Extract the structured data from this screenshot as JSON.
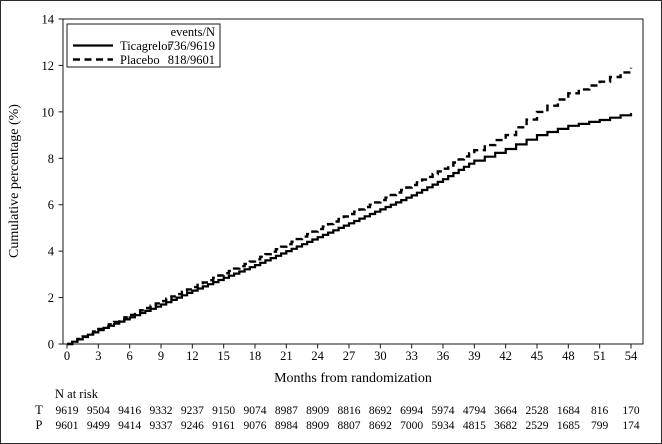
{
  "figure": {
    "background": "#ffffff",
    "border_color": "#2b2b2b",
    "line_color": "#000000"
  },
  "chart_data": {
    "type": "line",
    "subtype": "kaplan-meier-cumulative-incidence",
    "title": "",
    "xlabel": "Months from randomization",
    "ylabel": "Cumulative percentage (%)",
    "xlim": [
      0,
      54
    ],
    "ylim": [
      0,
      14
    ],
    "x_ticks": [
      0,
      3,
      6,
      9,
      12,
      15,
      18,
      21,
      24,
      27,
      30,
      33,
      36,
      39,
      42,
      45,
      48,
      51,
      54
    ],
    "y_ticks": [
      0,
      2,
      4,
      6,
      8,
      10,
      12,
      14
    ],
    "grid": false,
    "legend": {
      "position": "top-left",
      "header": "events/N",
      "entries": [
        {
          "name": "Ticagrelor",
          "events_n": "736/9619",
          "line": "solid"
        },
        {
          "name": "Placebo",
          "events_n": "818/9601",
          "line": "dashed"
        }
      ]
    },
    "x": [
      0,
      3,
      6,
      9,
      12,
      15,
      18,
      21,
      24,
      27,
      30,
      33,
      36,
      39,
      42,
      45,
      48,
      51,
      54
    ],
    "series": [
      {
        "name": "Ticagrelor",
        "style": "solid",
        "color": "#000000",
        "values": [
          0,
          0.6,
          1.15,
          1.7,
          2.3,
          2.85,
          3.4,
          4.0,
          4.6,
          5.2,
          5.8,
          6.4,
          7.1,
          7.9,
          8.4,
          9.0,
          9.4,
          9.65,
          9.95
        ]
      },
      {
        "name": "Placebo",
        "style": "dashed",
        "color": "#000000",
        "values": [
          0,
          0.65,
          1.25,
          1.85,
          2.45,
          3.05,
          3.65,
          4.3,
          4.95,
          5.6,
          6.2,
          6.85,
          7.55,
          8.35,
          9.0,
          10.0,
          10.8,
          11.3,
          11.9
        ]
      }
    ]
  },
  "risk_table": {
    "title": "N at risk",
    "rows": [
      {
        "label": "T",
        "counts": [
          "9619",
          "9504",
          "9416",
          "9332",
          "9237",
          "9150",
          "9074",
          "8987",
          "8909",
          "8816",
          "8692",
          "6994",
          "5974",
          "4794",
          "3664",
          "2528",
          "1684",
          "816",
          "170"
        ]
      },
      {
        "label": "P",
        "counts": [
          "9601",
          "9499",
          "9414",
          "9337",
          "9246",
          "9161",
          "9076",
          "8984",
          "8909",
          "8807",
          "8692",
          "7000",
          "5934",
          "4815",
          "3682",
          "2529",
          "1685",
          "799",
          "174"
        ]
      }
    ]
  }
}
